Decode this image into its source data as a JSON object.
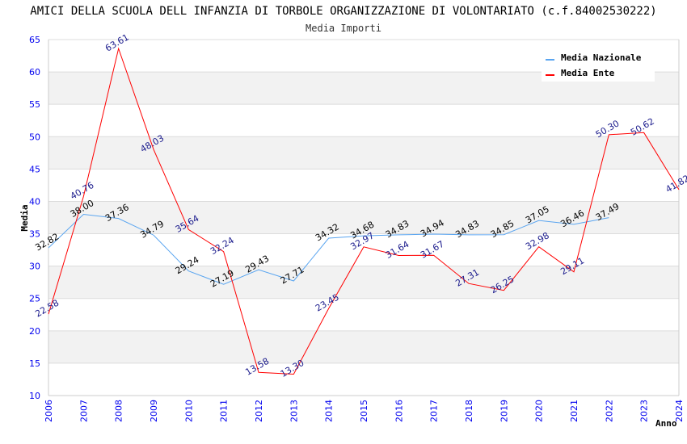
{
  "chart_data": {
    "type": "line",
    "title": "AMICI DELLA SCUOLA DELL INFANZIA DI TORBOLE ORGANIZZAZIONE DI VOLONTARIATO (c.f.84002530222)",
    "subtitle": "Media Importi",
    "xlabel": "Anno",
    "ylabel": "Media",
    "ylim": [
      10,
      65
    ],
    "yticks": [
      10,
      15,
      20,
      25,
      30,
      35,
      40,
      45,
      50,
      55,
      60,
      65
    ],
    "x": [
      2006,
      2007,
      2008,
      2009,
      2010,
      2011,
      2012,
      2013,
      2014,
      2015,
      2016,
      2017,
      2018,
      2019,
      2020,
      2021,
      2022,
      2023,
      2024
    ],
    "legend_position": "top-right",
    "series": [
      {
        "name": "Media Nazionale",
        "color": "#5aa5f0",
        "label_color": "#000000",
        "values": [
          32.82,
          38.0,
          37.36,
          34.79,
          29.24,
          27.19,
          29.43,
          27.71,
          34.32,
          34.68,
          34.83,
          34.94,
          34.83,
          34.85,
          37.05,
          36.46,
          37.49,
          null,
          null
        ]
      },
      {
        "name": "Media Ente",
        "color": "#ff0000",
        "label_color": "#1a1a8c",
        "values": [
          22.58,
          40.76,
          63.61,
          48.03,
          35.64,
          32.24,
          13.58,
          13.3,
          23.45,
          32.97,
          31.64,
          31.67,
          27.31,
          26.25,
          32.98,
          29.11,
          50.3,
          50.62,
          41.82
        ]
      }
    ]
  }
}
